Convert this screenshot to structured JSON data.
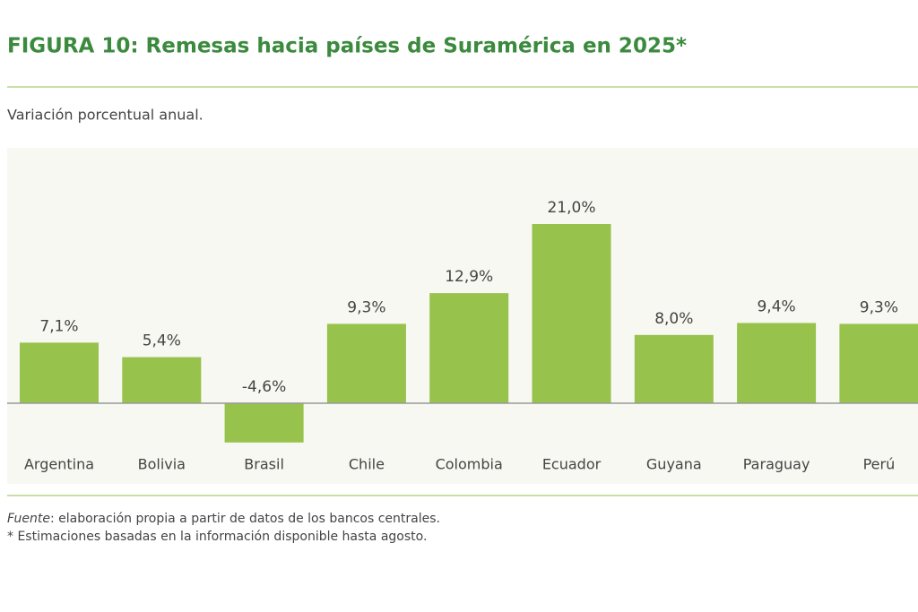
{
  "chart_data": {
    "type": "bar",
    "title": "FIGURA 10: Remesas hacia países de Suramérica en 2025*",
    "subtitle": "Variación porcentual anual.",
    "categories": [
      "Argentina",
      "Bolivia",
      "Brasil",
      "Chile",
      "Colombia",
      "Ecuador",
      "Guyana",
      "Paraguay",
      "Perú"
    ],
    "values": [
      7.1,
      5.4,
      -4.6,
      9.3,
      12.9,
      21.0,
      8.0,
      9.4,
      9.3
    ],
    "value_labels": [
      "7,1%",
      "5,4%",
      "-4,6%",
      "9,3%",
      "12,9%",
      "21,0%",
      "8,0%",
      "9,4%",
      "9,3%"
    ],
    "color": "#97c24b",
    "source": {
      "label": "Fuente",
      "text": ": elaboración propia a partir de datos de los bancos centrales."
    },
    "note": "* Estimaciones basadas en la información disponible hasta agosto."
  }
}
